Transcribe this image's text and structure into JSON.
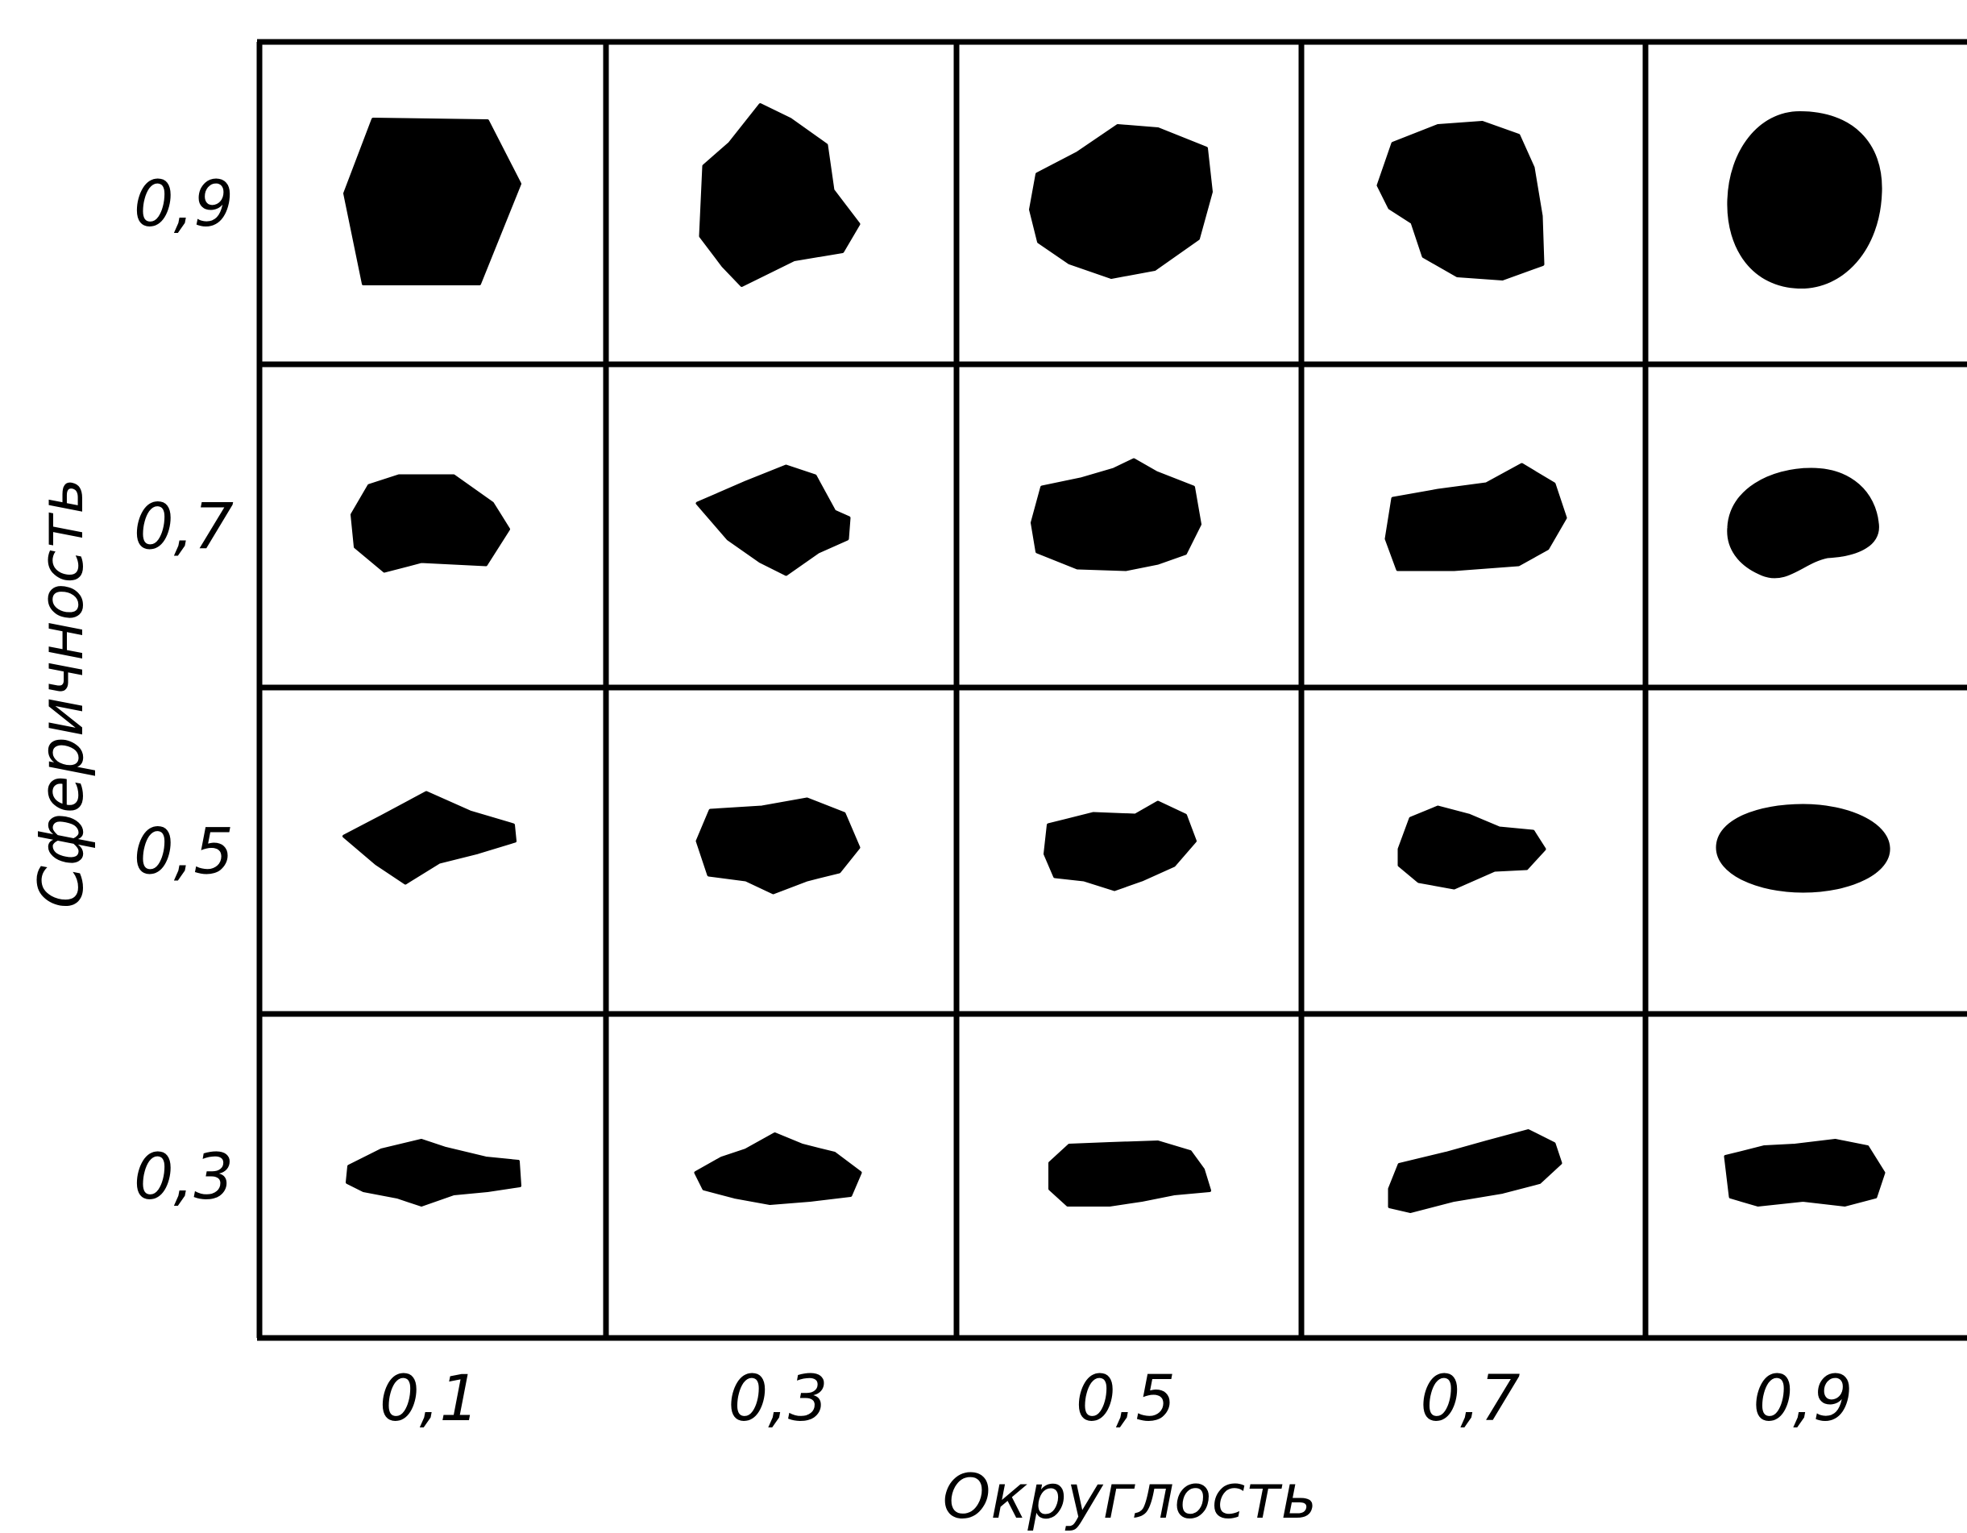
{
  "chart_data": {
    "type": "table",
    "xlabel": "Округлость",
    "ylabel": "Сферичность",
    "x_ticks": [
      "0,1",
      "0,3",
      "0,5",
      "0,7",
      "0,9"
    ],
    "y_ticks": [
      "0,9",
      "0,7",
      "0,5",
      "0,3"
    ],
    "x_values": [
      0.1,
      0.3,
      0.5,
      0.7,
      0.9
    ],
    "y_values": [
      0.9,
      0.7,
      0.5,
      0.3
    ],
    "cells": [
      [
        {
          "roundness": 0.1,
          "sphericity": 0.9,
          "shape": "hexagonal grain"
        },
        {
          "roundness": 0.3,
          "sphericity": 0.9,
          "shape": "angular grain"
        },
        {
          "roundness": 0.5,
          "sphericity": 0.9,
          "shape": "subrounded grain"
        },
        {
          "roundness": 0.7,
          "sphericity": 0.9,
          "shape": "rounded grain"
        },
        {
          "roundness": 0.9,
          "sphericity": 0.9,
          "shape": "oval grain"
        }
      ],
      [
        {
          "roundness": 0.1,
          "sphericity": 0.7,
          "shape": "angular grain"
        },
        {
          "roundness": 0.3,
          "sphericity": 0.7,
          "shape": "angular grain"
        },
        {
          "roundness": 0.5,
          "sphericity": 0.7,
          "shape": "subrounded grain"
        },
        {
          "roundness": 0.7,
          "sphericity": 0.7,
          "shape": "rounded grain"
        },
        {
          "roundness": 0.9,
          "sphericity": 0.7,
          "shape": "oval grain"
        }
      ],
      [
        {
          "roundness": 0.1,
          "sphericity": 0.5,
          "shape": "lenticular grain"
        },
        {
          "roundness": 0.3,
          "sphericity": 0.5,
          "shape": "subangular grain"
        },
        {
          "roundness": 0.5,
          "sphericity": 0.5,
          "shape": "subrounded grain"
        },
        {
          "roundness": 0.7,
          "sphericity": 0.5,
          "shape": "rounded grain"
        },
        {
          "roundness": 0.9,
          "sphericity": 0.5,
          "shape": "ellipsoid grain"
        }
      ],
      [
        {
          "roundness": 0.1,
          "sphericity": 0.3,
          "shape": "flat angular grain"
        },
        {
          "roundness": 0.3,
          "sphericity": 0.3,
          "shape": "flat grain"
        },
        {
          "roundness": 0.5,
          "sphericity": 0.3,
          "shape": "flat rounded grain"
        },
        {
          "roundness": 0.7,
          "sphericity": 0.3,
          "shape": "elongated grain"
        },
        {
          "roundness": 0.9,
          "sphericity": 0.3,
          "shape": "flat oval grain"
        }
      ]
    ],
    "colors": {
      "grain": "#000000",
      "grid": "#000000",
      "background": "#ffffff"
    }
  }
}
